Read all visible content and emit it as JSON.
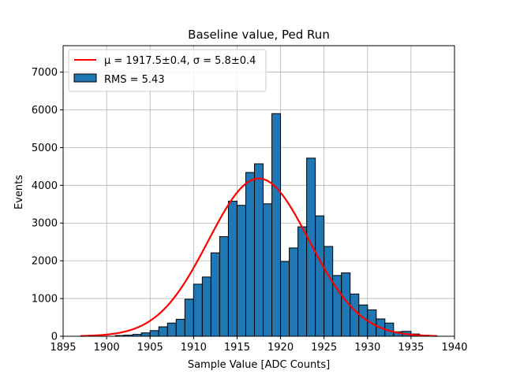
{
  "chart_data": {
    "type": "bar",
    "title": "Baseline value, Ped Run",
    "xlabel": "Sample Value [ADC Counts]",
    "ylabel": "Events",
    "xlim": [
      1895,
      1940
    ],
    "ylim": [
      0,
      7700
    ],
    "xticks": [
      1895,
      1900,
      1905,
      1910,
      1915,
      1920,
      1925,
      1930,
      1935,
      1940
    ],
    "yticks": [
      0,
      1000,
      2000,
      3000,
      4000,
      5000,
      6000,
      7000
    ],
    "grid": true,
    "legend_position": "top-left",
    "bins": {
      "start": 1901,
      "width": 1,
      "values": [
        20,
        30,
        50,
        90,
        150,
        250,
        350,
        450,
        980,
        1380,
        1570,
        2210,
        2640,
        3580,
        3470,
        4340,
        4570,
        3510,
        5900,
        1980,
        2340,
        2900,
        4720,
        3190,
        2380,
        1610,
        1680,
        1120,
        830,
        700,
        460,
        350,
        120,
        130,
        60,
        30,
        10
      ]
    },
    "series": [
      {
        "name": "RMS = 5.43",
        "type": "histogram",
        "color": "#1f77b4",
        "edge_color": "#000000"
      },
      {
        "name": "$\\mu = 1917.5\\pm0.4$, $\\sigma = 5.8\\pm0.4$",
        "type": "gaussian_fit",
        "color": "#ff0000",
        "mu": 1917.5,
        "sigma": 5.8,
        "amplitude": 4180,
        "x_range": [
          1897,
          1938
        ]
      }
    ],
    "legend": {
      "fit_label": "μ = 1917.5±0.4, σ = 5.8±0.4",
      "hist_label": "RMS = 5.43"
    }
  }
}
